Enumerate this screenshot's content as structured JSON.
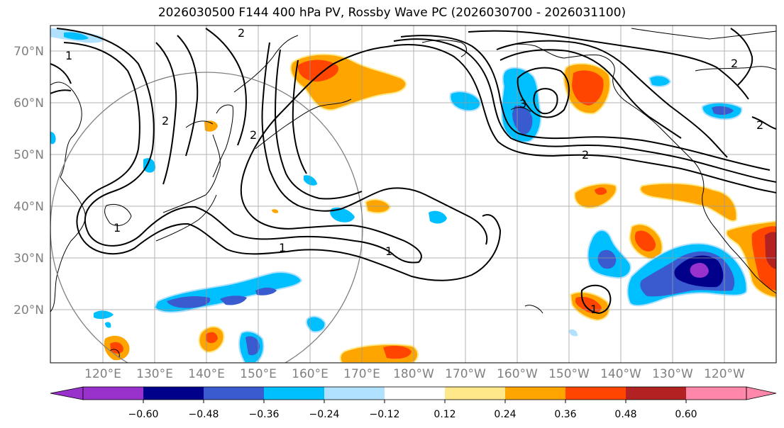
{
  "title": "2026030500 F144 400 hPa PV, Rossby Wave PC (2026030700 - 2026031100)",
  "lat_labels": [
    "70°N",
    "60°N",
    "50°N",
    "40°N",
    "30°N",
    "20°N"
  ],
  "lon_labels": [
    "120°E",
    "130°E",
    "140°E",
    "150°E",
    "160°E",
    "170°E",
    "180°W",
    "170°W",
    "160°W",
    "150°W",
    "140°W",
    "130°W",
    "120°W"
  ],
  "colorbar": {
    "ticks": [
      "−0.60",
      "−0.48",
      "−0.36",
      "−0.24",
      "−0.12",
      "0.12",
      "0.24",
      "0.36",
      "0.48",
      "0.60"
    ],
    "colors": [
      "#9932CC",
      "#00008B",
      "#3A5BD0",
      "#00BFFF",
      "#B0E2FF",
      "#FFFFFF",
      "#FFE88A",
      "#FFA500",
      "#FF4500",
      "#B22222",
      "#FF88AA"
    ]
  },
  "contour_labels": [
    "1",
    "1",
    "1",
    "1",
    "1",
    "2",
    "2",
    "2",
    "2",
    "2",
    "2",
    "3"
  ]
}
